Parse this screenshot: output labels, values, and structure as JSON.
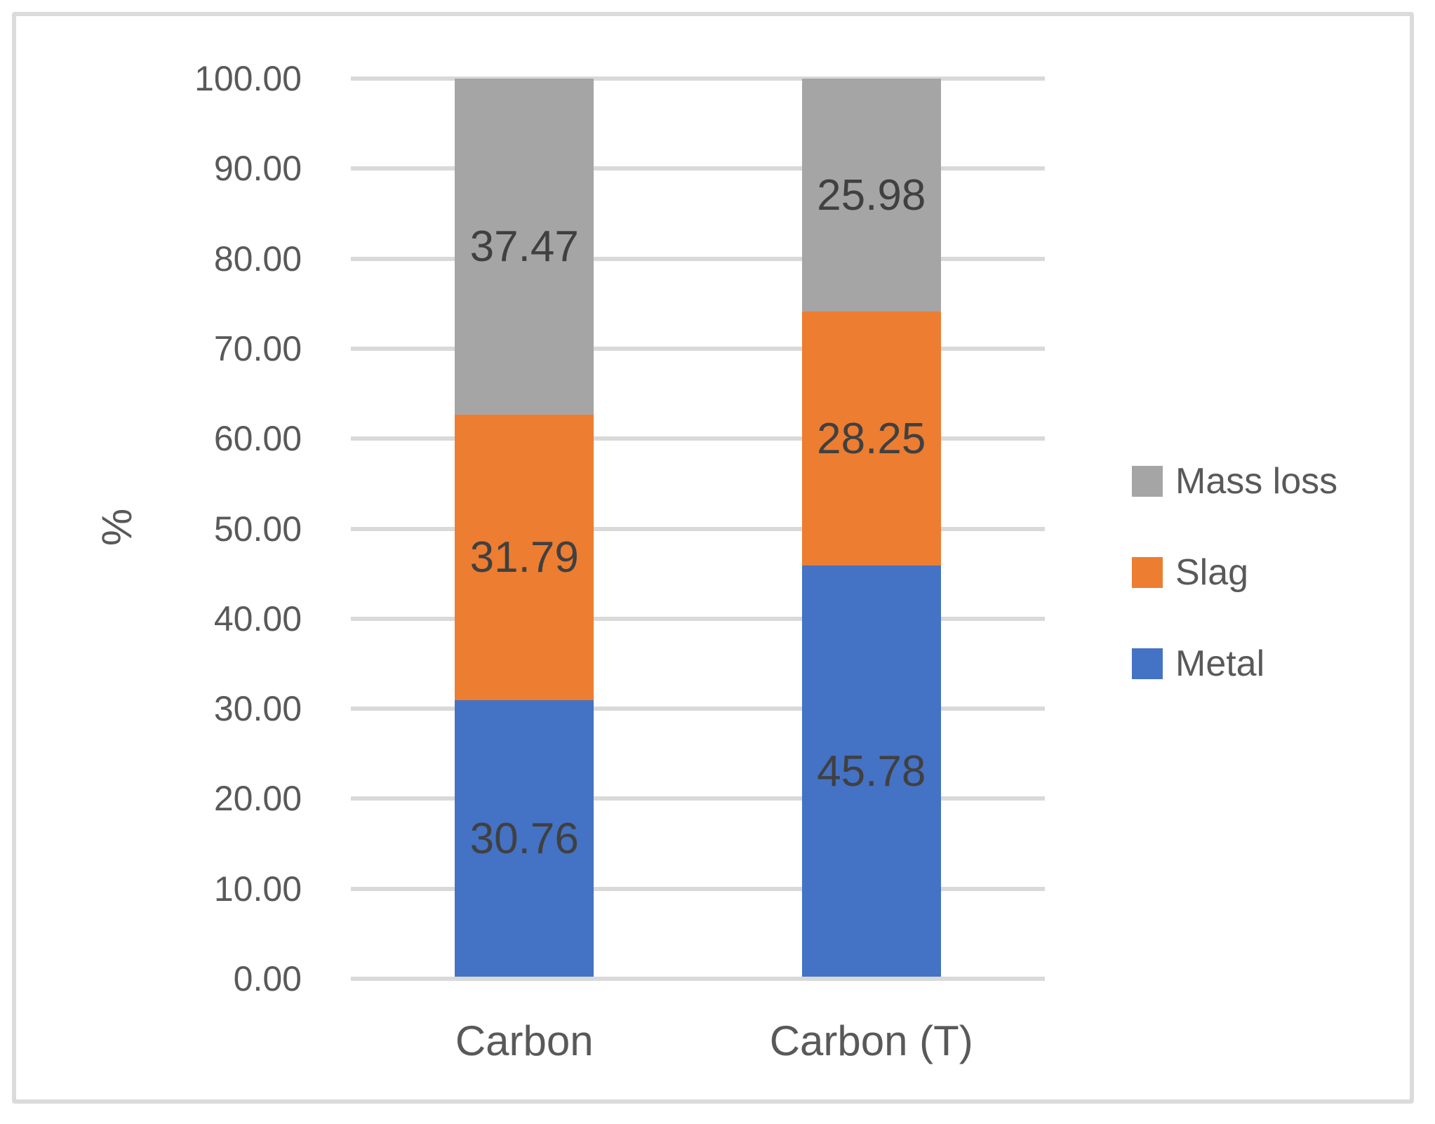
{
  "chart_data": {
    "type": "bar",
    "stacked": true,
    "title": "",
    "categories": [
      "Carbon",
      "Carbon (T)"
    ],
    "series": [
      {
        "name": "Metal",
        "color": "#4472C4",
        "values": [
          30.76,
          45.78
        ],
        "labels": [
          "30.76",
          "45.78"
        ]
      },
      {
        "name": "Slag",
        "color": "#ED7D31",
        "values": [
          31.79,
          28.25
        ],
        "labels": [
          "31.79",
          "28.25"
        ]
      },
      {
        "name": "Mass loss",
        "color": "#A5A5A5",
        "values": [
          37.47,
          25.98
        ],
        "labels": [
          "37.47",
          "25.98"
        ]
      }
    ],
    "xlabel": "",
    "ylabel": "%",
    "ylim": [
      0,
      100
    ],
    "ytick_step": 10,
    "ytick_labels": [
      "0.00",
      "10.00",
      "20.00",
      "30.00",
      "40.00",
      "50.00",
      "60.00",
      "70.00",
      "80.00",
      "90.00",
      "100.00"
    ],
    "grid": true,
    "legend_position": "right",
    "legend": {
      "items": [
        {
          "label": "Mass loss",
          "color": "#A5A5A5"
        },
        {
          "label": "Slag",
          "color": "#ED7D31"
        },
        {
          "label": "Metal",
          "color": "#4472C4"
        }
      ]
    },
    "label_color": "#404040",
    "axis_text_color": "#595959"
  }
}
